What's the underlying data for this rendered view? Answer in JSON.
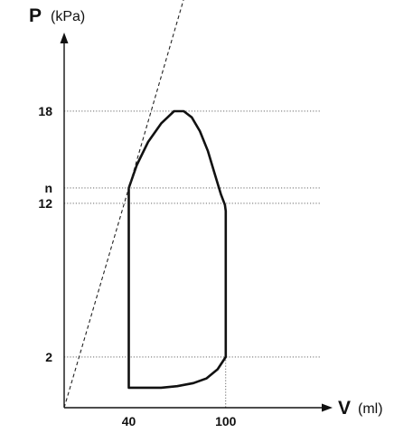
{
  "chart_data": {
    "type": "line",
    "y_axis": {
      "symbol": "P",
      "unit": "(kPa)"
    },
    "x_axis": {
      "symbol": "V",
      "unit": "(ml)"
    },
    "y_ticks": [
      {
        "label": "2",
        "value": 2
      },
      {
        "label": "12",
        "value": 12
      },
      {
        "label": "n",
        "value": 13
      },
      {
        "label": "18",
        "value": 18
      }
    ],
    "x_ticks": [
      {
        "label": "40",
        "value": 40
      },
      {
        "label": "100",
        "value": 100
      }
    ],
    "grid": "horizontal dotted lines at y ticks; vertical dotted line at V = 100 below P = 2",
    "xlim": [
      0,
      160
    ],
    "ylim": [
      -1.3,
      23
    ],
    "series": [
      {
        "kind": "closed-loop",
        "points": [
          [
            40,
            0.0
          ],
          [
            40,
            13.0
          ],
          [
            45,
            14.5
          ],
          [
            52,
            16.0
          ],
          [
            60,
            17.2
          ],
          [
            68,
            18.0
          ],
          [
            74,
            18.0
          ],
          [
            79,
            17.6
          ],
          [
            84,
            16.7
          ],
          [
            89,
            15.4
          ],
          [
            93,
            14.0
          ],
          [
            97,
            12.6
          ],
          [
            99.5,
            11.9
          ],
          [
            100,
            11.5
          ],
          [
            100,
            2.0
          ],
          [
            95,
            1.2
          ],
          [
            88,
            0.6
          ],
          [
            80,
            0.3
          ],
          [
            70,
            0.1
          ],
          [
            60,
            0.0
          ],
          [
            50,
            0.0
          ],
          [
            40,
            0.0
          ]
        ]
      },
      {
        "kind": "dashed-line",
        "points": [
          [
            0,
            -1.3
          ],
          [
            40,
            13.0
          ],
          [
            76,
            26.0
          ]
        ]
      }
    ]
  }
}
